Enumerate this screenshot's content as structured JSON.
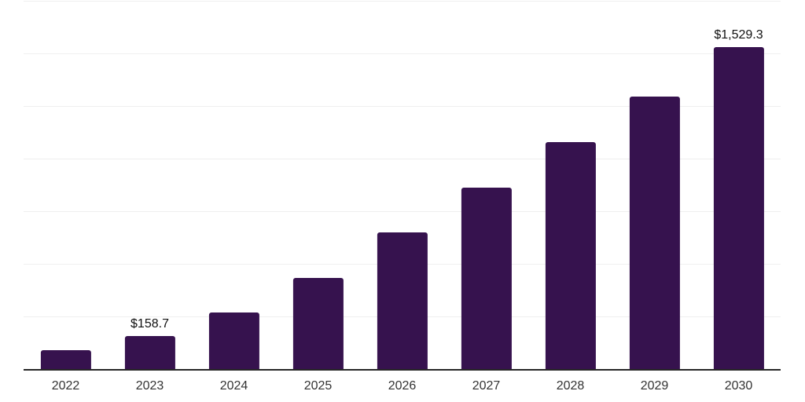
{
  "chart_data": {
    "type": "bar",
    "title": "",
    "xlabel": "",
    "ylabel": "",
    "categories": [
      "2022",
      "2023",
      "2024",
      "2025",
      "2026",
      "2027",
      "2028",
      "2029",
      "2030"
    ],
    "values": [
      88,
      158.7,
      268,
      434,
      649,
      861,
      1078,
      1295,
      1529.3
    ],
    "labels": [
      "",
      "$158.7",
      "",
      "",
      "",
      "",
      "",
      "",
      "$1,529.3"
    ],
    "ylim": [
      0,
      1750
    ],
    "gridline_step": 250,
    "grid": true,
    "legend": false,
    "colors": {
      "bar": "#36124E",
      "axis_line": "#262626",
      "gridline": "#efefef",
      "tick_label": "#333333",
      "data_label": "#111111",
      "background": "#ffffff"
    }
  }
}
